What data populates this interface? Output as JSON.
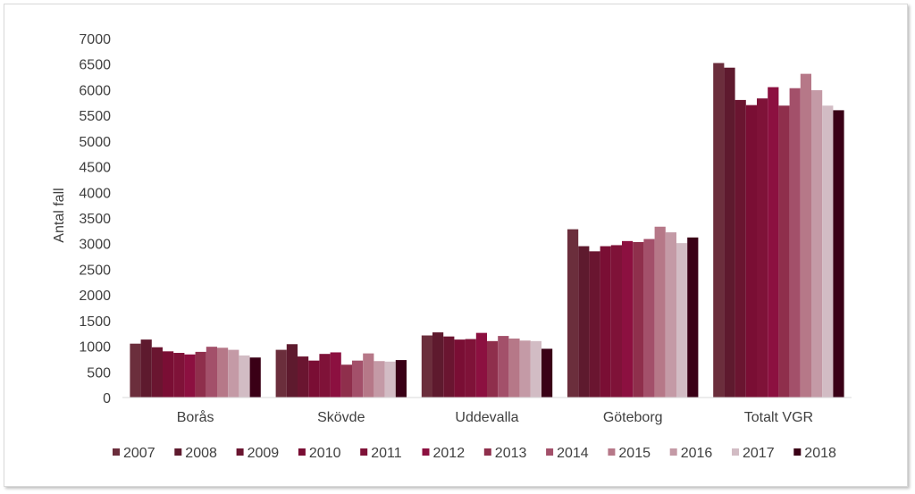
{
  "chart_data": {
    "type": "bar",
    "title": "",
    "xlabel": "",
    "ylabel": "Antal fall",
    "ylim": [
      0,
      7000
    ],
    "yticks": [
      0,
      500,
      1000,
      1500,
      2000,
      2500,
      3000,
      3500,
      4000,
      4500,
      5000,
      5500,
      6000,
      6500,
      7000
    ],
    "categories": [
      "Borås",
      "Skövde",
      "Uddevalla",
      "Göteborg",
      "Totalt VGR"
    ],
    "legend_position": "bottom",
    "grid": false,
    "series": [
      {
        "name": "2007",
        "color": "#6b2e3c",
        "values": [
          1050,
          930,
          1210,
          3280,
          6520
        ]
      },
      {
        "name": "2008",
        "color": "#5e1a2e",
        "values": [
          1130,
          1040,
          1270,
          2950,
          6430
        ]
      },
      {
        "name": "2009",
        "color": "#6a1530",
        "values": [
          980,
          800,
          1190,
          2850,
          5800
        ]
      },
      {
        "name": "2010",
        "color": "#7a0e34",
        "values": [
          900,
          720,
          1130,
          2950,
          5700
        ]
      },
      {
        "name": "2011",
        "color": "#7f1238",
        "values": [
          870,
          850,
          1140,
          2970,
          5830
        ]
      },
      {
        "name": "2012",
        "color": "#8c1040",
        "values": [
          840,
          880,
          1260,
          3050,
          6050
        ]
      },
      {
        "name": "2013",
        "color": "#8f2f4c",
        "values": [
          890,
          640,
          1100,
          3030,
          5690
        ]
      },
      {
        "name": "2014",
        "color": "#a3506a",
        "values": [
          990,
          720,
          1200,
          3090,
          6030
        ]
      },
      {
        "name": "2015",
        "color": "#b67888",
        "values": [
          970,
          860,
          1150,
          3330,
          6310
        ]
      },
      {
        "name": "2016",
        "color": "#c49aa6",
        "values": [
          930,
          710,
          1110,
          3220,
          5990
        ]
      },
      {
        "name": "2017",
        "color": "#d2bcc4",
        "values": [
          820,
          700,
          1100,
          3010,
          5690
        ]
      },
      {
        "name": "2018",
        "color": "#3a0016",
        "values": [
          780,
          730,
          950,
          3120,
          5600
        ]
      }
    ]
  }
}
